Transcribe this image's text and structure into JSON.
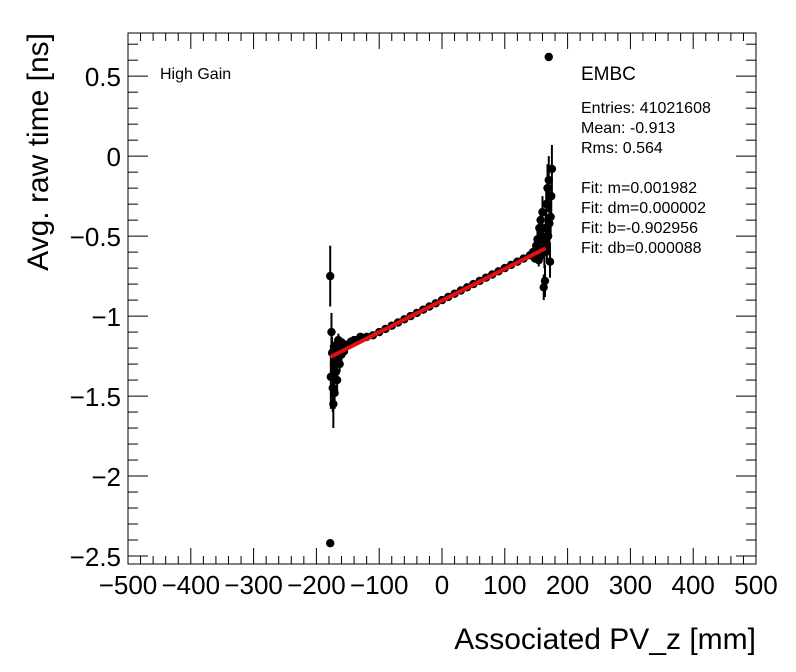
{
  "chart_data": {
    "type": "scatter",
    "xlabel": "Associated PV_z [mm]",
    "ylabel": "Avg. raw time [ns]",
    "xlim": [
      -500,
      500
    ],
    "ylim": [
      -2.55,
      0.77
    ],
    "x_ticks": [
      -500,
      -400,
      -300,
      -200,
      -100,
      0,
      100,
      200,
      300,
      400,
      500
    ],
    "x_tick_labels": [
      "−500",
      "−400",
      "−300",
      "−200",
      "−100",
      "0",
      "100",
      "200",
      "300",
      "400",
      "500"
    ],
    "y_ticks": [
      -2.5,
      -2,
      -1.5,
      -1,
      -0.5,
      0,
      0.5
    ],
    "y_tick_labels": [
      "−2.5",
      "−2",
      "−1.5",
      "−1",
      "−0.5",
      "0",
      "0.5"
    ],
    "annotation_left": "High Gain",
    "stats": {
      "title": "EMBC",
      "entries": "Entries: 41021608",
      "mean": "Mean: -0.913",
      "rms": "Rms: 0.564",
      "fit_m": "Fit: m=0.001982",
      "fit_dm": "Fit: dm=0.000002",
      "fit_b": "Fit: b=-0.902956",
      "fit_db": "Fit: db=0.000088"
    },
    "fit": {
      "m": 0.001982,
      "b": -0.902956,
      "x_range": [
        -178,
        165
      ],
      "color": "#e01010"
    },
    "series": [
      {
        "name": "Avg. raw time",
        "color": "#000000",
        "points": [
          {
            "x": -178,
            "y": -0.75,
            "err": 0.19
          },
          {
            "x": -178,
            "y": -2.42,
            "err": 0.0
          },
          {
            "x": -177,
            "y": -1.38,
            "err": 0.2
          },
          {
            "x": -176,
            "y": -1.1,
            "err": 0.12
          },
          {
            "x": -175,
            "y": -1.23,
            "err": 0.1
          },
          {
            "x": -174,
            "y": -1.45,
            "err": 0.15
          },
          {
            "x": -173,
            "y": -1.55,
            "err": 0.15
          },
          {
            "x": -172,
            "y": -1.3,
            "err": 0.08
          },
          {
            "x": -171,
            "y": -1.48,
            "err": 0.1
          },
          {
            "x": -170,
            "y": -1.2,
            "err": 0.06
          },
          {
            "x": -169,
            "y": -1.35,
            "err": 0.07
          },
          {
            "x": -168,
            "y": -1.18,
            "err": 0.05
          },
          {
            "x": -167,
            "y": -1.4,
            "err": 0.08
          },
          {
            "x": -166,
            "y": -1.27,
            "err": 0.05
          },
          {
            "x": -165,
            "y": -1.15,
            "err": 0.04
          },
          {
            "x": -163,
            "y": -1.3,
            "err": 0.05
          },
          {
            "x": -162,
            "y": -1.2,
            "err": 0.03
          },
          {
            "x": -160,
            "y": -1.24,
            "err": 0.04
          },
          {
            "x": -158,
            "y": -1.17,
            "err": 0.03
          },
          {
            "x": -156,
            "y": -1.22,
            "err": 0.03
          },
          {
            "x": -154,
            "y": -1.19,
            "err": 0.02
          },
          {
            "x": -150,
            "y": -1.18,
            "err": 0.02
          },
          {
            "x": -145,
            "y": -1.16,
            "err": 0.02
          },
          {
            "x": -140,
            "y": -1.15,
            "err": 0.02
          },
          {
            "x": -135,
            "y": -1.15,
            "err": 0.015
          },
          {
            "x": -130,
            "y": -1.13,
            "err": 0.015
          },
          {
            "x": -120,
            "y": -1.13,
            "err": 0.01
          },
          {
            "x": -110,
            "y": -1.12,
            "err": 0.01
          },
          {
            "x": -100,
            "y": -1.1,
            "err": 0.01
          },
          {
            "x": -90,
            "y": -1.08,
            "err": 0.01
          },
          {
            "x": -80,
            "y": -1.06,
            "err": 0.008
          },
          {
            "x": -70,
            "y": -1.04,
            "err": 0.008
          },
          {
            "x": -60,
            "y": -1.02,
            "err": 0.008
          },
          {
            "x": -50,
            "y": -1.0,
            "err": 0.008
          },
          {
            "x": -40,
            "y": -0.98,
            "err": 0.008
          },
          {
            "x": -30,
            "y": -0.96,
            "err": 0.008
          },
          {
            "x": -20,
            "y": -0.94,
            "err": 0.008
          },
          {
            "x": -10,
            "y": -0.92,
            "err": 0.008
          },
          {
            "x": 0,
            "y": -0.9,
            "err": 0.008
          },
          {
            "x": 10,
            "y": -0.88,
            "err": 0.008
          },
          {
            "x": 20,
            "y": -0.86,
            "err": 0.008
          },
          {
            "x": 30,
            "y": -0.84,
            "err": 0.008
          },
          {
            "x": 40,
            "y": -0.82,
            "err": 0.008
          },
          {
            "x": 50,
            "y": -0.8,
            "err": 0.008
          },
          {
            "x": 60,
            "y": -0.78,
            "err": 0.008
          },
          {
            "x": 70,
            "y": -0.76,
            "err": 0.008
          },
          {
            "x": 80,
            "y": -0.74,
            "err": 0.01
          },
          {
            "x": 90,
            "y": -0.72,
            "err": 0.01
          },
          {
            "x": 100,
            "y": -0.7,
            "err": 0.01
          },
          {
            "x": 110,
            "y": -0.68,
            "err": 0.01
          },
          {
            "x": 120,
            "y": -0.66,
            "err": 0.012
          },
          {
            "x": 130,
            "y": -0.64,
            "err": 0.015
          },
          {
            "x": 140,
            "y": -0.62,
            "err": 0.02
          },
          {
            "x": 145,
            "y": -0.6,
            "err": 0.025
          },
          {
            "x": 148,
            "y": -0.64,
            "err": 0.02
          },
          {
            "x": 150,
            "y": -0.56,
            "err": 0.03
          },
          {
            "x": 152,
            "y": -0.52,
            "err": 0.05
          },
          {
            "x": 154,
            "y": -0.65,
            "err": 0.04
          },
          {
            "x": 155,
            "y": -0.45,
            "err": 0.06
          },
          {
            "x": 156,
            "y": -0.58,
            "err": 0.05
          },
          {
            "x": 157,
            "y": -0.4,
            "err": 0.07
          },
          {
            "x": 158,
            "y": -0.62,
            "err": 0.04
          },
          {
            "x": 159,
            "y": -0.5,
            "err": 0.06
          },
          {
            "x": 160,
            "y": -0.35,
            "err": 0.1
          },
          {
            "x": 161,
            "y": -0.55,
            "err": 0.08
          },
          {
            "x": 162,
            "y": -0.82,
            "err": 0.08
          },
          {
            "x": 163,
            "y": -0.6,
            "err": 0.1
          },
          {
            "x": 164,
            "y": -0.78,
            "err": 0.1
          },
          {
            "x": 165,
            "y": -0.45,
            "err": 0.1
          },
          {
            "x": 166,
            "y": -0.3,
            "err": 0.12
          },
          {
            "x": 167,
            "y": -0.55,
            "err": 0.12
          },
          {
            "x": 168,
            "y": -0.2,
            "err": 0.15
          },
          {
            "x": 169,
            "y": -0.5,
            "err": 0.12
          },
          {
            "x": 170,
            "y": -0.15,
            "err": 0.15
          },
          {
            "x": 170,
            "y": 0.62,
            "err": 0.0
          },
          {
            "x": 171,
            "y": -0.42,
            "err": 0.12
          },
          {
            "x": 172,
            "y": -0.66,
            "err": 0.1
          },
          {
            "x": 173,
            "y": -0.38,
            "err": 0.12
          },
          {
            "x": 174,
            "y": -0.25,
            "err": 0.12
          },
          {
            "x": 175,
            "y": -0.08,
            "err": 0.15
          }
        ]
      }
    ]
  }
}
